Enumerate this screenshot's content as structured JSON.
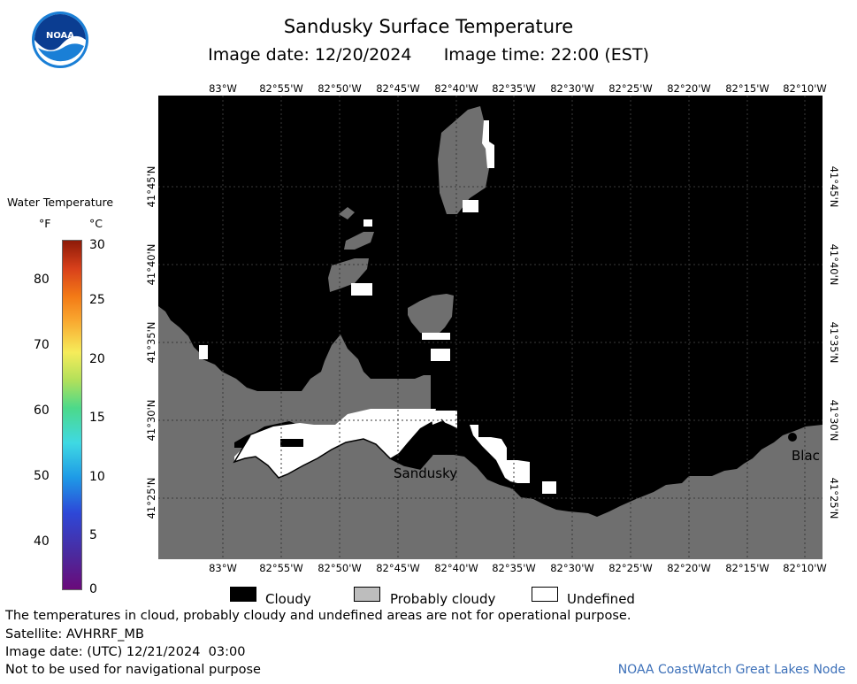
{
  "header": {
    "title": "Sandusky Surface Temperature",
    "image_date": "Image date: 12/20/2024",
    "image_time": "Image time: 22:00 (EST)"
  },
  "logo": {
    "text": "NOAA"
  },
  "scale": {
    "title": "Water Temperature",
    "unit_f": "°F",
    "unit_c": "°C",
    "ticks_f": [
      "80",
      "70",
      "60",
      "50",
      "40"
    ],
    "ticks_c": [
      "30",
      "25",
      "20",
      "15",
      "10",
      "5",
      "0"
    ],
    "colors": [
      "#6a0a7a",
      "#2d48d8",
      "#3fd9e3",
      "#4cd98a",
      "#f6ec5a",
      "#f37a16",
      "#8d1a08"
    ]
  },
  "map": {
    "lon_labels": [
      "83°W",
      "82°55'W",
      "82°50'W",
      "82°45'W",
      "82°40'W",
      "82°35'W",
      "82°30'W",
      "82°25'W",
      "82°20'W",
      "82°15'W",
      "82°10'W"
    ],
    "lat_labels": [
      "41°45'N",
      "41°40'N",
      "41°35'N",
      "41°30'N",
      "41°25'N"
    ],
    "cities": [
      {
        "name": "Sandusky"
      },
      {
        "name": "Blac"
      }
    ],
    "colors": {
      "cloudy": "#000000",
      "probably_cloudy": "#6f6f6f",
      "undefined": "#ffffff"
    }
  },
  "legend": {
    "cloudy": "Cloudy",
    "probably_cloudy": "Probably cloudy",
    "undefined": "Undefined"
  },
  "footer": {
    "disclaimer": "The temperatures in cloud, probably cloudy and undefined areas are not for operational purpose.",
    "satellite": "Satellite: AVHRRF_MB",
    "utc_date": "Image date: (UTC) 12/21/2024  03:00",
    "nav_warning": "Not to be used for navigational purpose",
    "credit": "NOAA CoastWatch Great Lakes Node"
  }
}
